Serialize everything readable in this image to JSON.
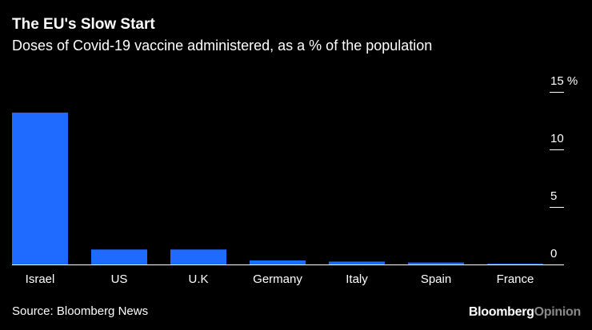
{
  "chart_data": {
    "type": "bar",
    "title": "The EU's Slow Start",
    "subtitle": "Doses of Covid-19 vaccine administered, as a % of the population",
    "categories": [
      "Israel",
      "US",
      "U.K",
      "Germany",
      "Italy",
      "Spain",
      "France"
    ],
    "values": [
      13.2,
      1.3,
      1.3,
      0.35,
      0.25,
      0.17,
      0.07
    ],
    "xlabel": "",
    "ylabel": "",
    "ylim": [
      0,
      15
    ],
    "yticks": [
      {
        "value": 0,
        "label": "0"
      },
      {
        "value": 5,
        "label": "5"
      },
      {
        "value": 10,
        "label": "10"
      },
      {
        "value": 15,
        "label": "15 %"
      }
    ],
    "grid": false,
    "colors": {
      "bar": "#1f6bff",
      "axis": "#ffffff",
      "background": "#000000"
    }
  },
  "footer": {
    "source": "Source: Bloomberg News",
    "brand_main": "Bloomberg",
    "brand_accent": "Opinion"
  }
}
